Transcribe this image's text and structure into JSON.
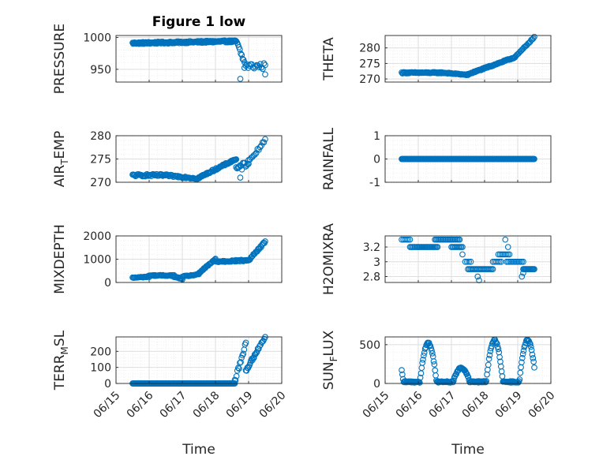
{
  "colors": {
    "marker": "#0072BD",
    "axis": "#262626",
    "grid": "#DEDEDE",
    "minor_grid": "#E6E6E6"
  },
  "chart_data": [
    {
      "id": "pressure",
      "type": "scatter",
      "title": "Figure 1 low",
      "ylabel": "PRESSURE",
      "xlabel": "",
      "xlim": [
        "06/15",
        "06/20"
      ],
      "ylim": [
        930,
        1003
      ],
      "ytick_labels": [
        "950",
        "1000"
      ],
      "ytick_values": [
        950,
        1000
      ],
      "xtick_labels": [],
      "marker": "circle",
      "grid": true,
      "minor_grid": true,
      "segments": [
        {
          "x": [
            "2023-06-15T12:00",
            "2023-06-18T15:00"
          ],
          "y": [
            991,
            994
          ],
          "n": 190,
          "wiggle": 3
        },
        {
          "x": [
            "2023-06-18T15:00",
            "2023-06-18T21:00"
          ],
          "y": [
            994,
            960
          ],
          "n": 10,
          "wiggle": 8
        },
        {
          "x": [
            "2023-06-18T21:00",
            "2023-06-19T12:00"
          ],
          "y": [
            955,
            955
          ],
          "n": 18,
          "wiggle": 10
        }
      ],
      "points": [
        {
          "x": "2023-06-18T18:00",
          "y": 935
        },
        {
          "x": "2023-06-19T12:00",
          "y": 942
        }
      ]
    },
    {
      "id": "theta",
      "type": "scatter",
      "title": "",
      "ylabel": "THETA",
      "xlabel": "",
      "xlim": [
        "06/15",
        "06/20"
      ],
      "ylim": [
        269,
        284
      ],
      "ytick_labels": [
        "270",
        "275",
        "280"
      ],
      "ytick_values": [
        270,
        275,
        280
      ],
      "xtick_labels": [],
      "marker": "circle",
      "grid": true,
      "minor_grid": true,
      "segments": [
        {
          "x": [
            "2023-06-15T12:00",
            "2023-06-16T18:00"
          ],
          "y": [
            272,
            272
          ],
          "n": 60,
          "wiggle": 0.4
        },
        {
          "x": [
            "2023-06-16T18:00",
            "2023-06-17T12:00"
          ],
          "y": [
            272,
            271.3
          ],
          "n": 40,
          "wiggle": 0.3
        },
        {
          "x": [
            "2023-06-17T12:00",
            "2023-06-18T22:00"
          ],
          "y": [
            271.5,
            277
          ],
          "n": 80,
          "wiggle": 0.4
        },
        {
          "x": [
            "2023-06-18T22:00",
            "2023-06-19T12:00"
          ],
          "y": [
            277,
            283.5
          ],
          "n": 20,
          "wiggle": 0.3
        }
      ],
      "points": []
    },
    {
      "id": "air_temp",
      "type": "scatter",
      "title": "",
      "ylabel_parts": [
        "AIR",
        "T",
        "EMP"
      ],
      "xlabel": "",
      "xlim": [
        "06/15",
        "06/20"
      ],
      "ylim": [
        270,
        280
      ],
      "ytick_labels": [
        "270",
        "275",
        "280"
      ],
      "ytick_values": [
        270,
        275,
        280
      ],
      "xtick_labels": [],
      "marker": "circle",
      "grid": true,
      "minor_grid": true,
      "segments": [
        {
          "x": [
            "2023-06-15T12:00",
            "2023-06-16T12:00"
          ],
          "y": [
            271.5,
            271.5
          ],
          "n": 45,
          "wiggle": 0.5
        },
        {
          "x": [
            "2023-06-16T12:00",
            "2023-06-17T12:00"
          ],
          "y": [
            271.5,
            270.8
          ],
          "n": 40,
          "wiggle": 0.4
        },
        {
          "x": [
            "2023-06-17T12:00",
            "2023-06-18T15:00"
          ],
          "y": [
            271,
            275
          ],
          "n": 60,
          "wiggle": 0.4
        },
        {
          "x": [
            "2023-06-18T15:00",
            "2023-06-19T00:00"
          ],
          "y": [
            272.5,
            274.5
          ],
          "n": 14,
          "wiggle": 1.5
        },
        {
          "x": [
            "2023-06-19T00:00",
            "2023-06-19T12:00"
          ],
          "y": [
            274.5,
            279
          ],
          "n": 14,
          "wiggle": 0.6
        }
      ],
      "points": [
        {
          "x": "2023-06-18T18:00",
          "y": 271
        }
      ]
    },
    {
      "id": "rainfall",
      "type": "scatter",
      "title": "",
      "ylabel": "RAINFALL",
      "xlabel": "",
      "xlim": [
        "06/15",
        "06/20"
      ],
      "ylim": [
        -1,
        1
      ],
      "ytick_labels": [
        "-1",
        "0",
        "1"
      ],
      "ytick_values": [
        -1,
        0,
        1
      ],
      "xtick_labels": [],
      "marker": "circle",
      "grid": true,
      "minor_grid": true,
      "segments": [
        {
          "x": [
            "2023-06-15T12:00",
            "2023-06-19T12:00"
          ],
          "y": [
            0,
            0
          ],
          "n": 230,
          "wiggle": 0
        }
      ],
      "points": []
    },
    {
      "id": "mixdepth",
      "type": "scatter",
      "title": "",
      "ylabel": "MIXDEPTH",
      "xlabel": "",
      "xlim": [
        "06/15",
        "06/20"
      ],
      "ylim": [
        0,
        2000
      ],
      "ytick_labels": [
        "0",
        "1000",
        "2000"
      ],
      "ytick_values": [
        0,
        1000,
        2000
      ],
      "xtick_labels": [],
      "marker": "circle",
      "grid": true,
      "minor_grid": true,
      "segments": [
        {
          "x": [
            "2023-06-15T12:00",
            "2023-06-16T00:00"
          ],
          "y": [
            200,
            250
          ],
          "n": 20,
          "wiggle": 40
        },
        {
          "x": [
            "2023-06-16T00:00",
            "2023-06-16T18:00"
          ],
          "y": [
            300,
            300
          ],
          "n": 30,
          "wiggle": 40
        },
        {
          "x": [
            "2023-06-16T18:00",
            "2023-06-17T00:00"
          ],
          "y": [
            250,
            150
          ],
          "n": 12,
          "wiggle": 40
        },
        {
          "x": [
            "2023-06-17T00:00",
            "2023-06-17T12:00"
          ],
          "y": [
            250,
            350
          ],
          "n": 20,
          "wiggle": 40
        },
        {
          "x": [
            "2023-06-17T12:00",
            "2023-06-18T00:00"
          ],
          "y": [
            400,
            1000
          ],
          "n": 24,
          "wiggle": 60
        },
        {
          "x": [
            "2023-06-18T00:00",
            "2023-06-19T00:00"
          ],
          "y": [
            900,
            950
          ],
          "n": 45,
          "wiggle": 70
        },
        {
          "x": [
            "2023-06-19T00:00",
            "2023-06-19T12:00"
          ],
          "y": [
            950,
            1750
          ],
          "n": 22,
          "wiggle": 80
        }
      ],
      "points": []
    },
    {
      "id": "h2omixra",
      "type": "scatter",
      "title": "",
      "ylabel": "H2OMIXRA",
      "xlabel": "",
      "xlim": [
        "06/15",
        "06/20"
      ],
      "ylim": [
        2.72,
        3.35
      ],
      "ytick_labels": [
        "2.8",
        "3",
        "3.2"
      ],
      "ytick_values": [
        2.8,
        3.0,
        3.2
      ],
      "xtick_labels": [],
      "marker": "circle",
      "grid": true,
      "minor_grid": true,
      "steps": [
        {
          "x": [
            "2023-06-15T12:00",
            "2023-06-15T18:00"
          ],
          "y": 3.3,
          "n": 6
        },
        {
          "x": [
            "2023-06-15T18:00",
            "2023-06-16T00:00"
          ],
          "y": 3.2,
          "n": 8
        },
        {
          "x": [
            "2023-06-16T00:00",
            "2023-06-16T14:00"
          ],
          "y": 3.2,
          "n": 18
        },
        {
          "x": [
            "2023-06-16T12:00",
            "2023-06-17T06:00"
          ],
          "y": 3.3,
          "n": 22
        },
        {
          "x": [
            "2023-06-17T00:00",
            "2023-06-17T08:00"
          ],
          "y": 3.2,
          "n": 10
        },
        {
          "x": [
            "2023-06-17T10:00",
            "2023-06-17T14:00"
          ],
          "y": 3.0,
          "n": 4
        },
        {
          "x": [
            "2023-06-17T12:00",
            "2023-06-18T06:00"
          ],
          "y": 2.9,
          "n": 20
        },
        {
          "x": [
            "2023-06-18T06:00",
            "2023-06-18T12:00"
          ],
          "y": 3.0,
          "n": 6
        },
        {
          "x": [
            "2023-06-18T10:00",
            "2023-06-18T18:00"
          ],
          "y": 3.1,
          "n": 8
        },
        {
          "x": [
            "2023-06-18T16:00",
            "2023-06-19T04:00"
          ],
          "y": 3.0,
          "n": 12
        },
        {
          "x": [
            "2023-06-19T04:00",
            "2023-06-19T12:00"
          ],
          "y": 2.9,
          "n": 14
        }
      ],
      "points": [
        {
          "x": "2023-06-17T08:00",
          "y": 3.1
        },
        {
          "x": "2023-06-17T19:00",
          "y": 2.8
        },
        {
          "x": "2023-06-17T20:00",
          "y": 2.75
        },
        {
          "x": "2023-06-18T15:00",
          "y": 3.3
        },
        {
          "x": "2023-06-18T17:00",
          "y": 3.2
        },
        {
          "x": "2023-06-19T03:00",
          "y": 2.8
        },
        {
          "x": "2023-06-19T04:00",
          "y": 2.85
        }
      ]
    },
    {
      "id": "terr_msl",
      "type": "scatter",
      "title": "",
      "ylabel_parts": [
        "TERR",
        "M",
        "SL"
      ],
      "xlabel": "Time",
      "xlim": [
        "06/15",
        "06/20"
      ],
      "ylim": [
        0,
        290
      ],
      "ytick_labels": [
        "0",
        "100",
        "200"
      ],
      "ytick_values": [
        0,
        100,
        200
      ],
      "xtick_labels": [
        "06/15",
        "06/16",
        "06/17",
        "06/18",
        "06/19",
        "06/20"
      ],
      "marker": "circle",
      "grid": true,
      "minor_grid": true,
      "segments": [
        {
          "x": [
            "2023-06-15T12:00",
            "2023-06-18T14:00"
          ],
          "y": [
            0,
            0
          ],
          "n": 170,
          "wiggle": 0
        },
        {
          "x": [
            "2023-06-18T14:00",
            "2023-06-18T22:00"
          ],
          "y": [
            10,
            250
          ],
          "n": 14,
          "wiggle": 30
        },
        {
          "x": [
            "2023-06-18T22:00",
            "2023-06-19T06:00"
          ],
          "y": [
            80,
            200
          ],
          "n": 16,
          "wiggle": 20
        },
        {
          "x": [
            "2023-06-19T06:00",
            "2023-06-19T12:00"
          ],
          "y": [
            200,
            290
          ],
          "n": 10,
          "wiggle": 20
        }
      ],
      "points": []
    },
    {
      "id": "sun_flux",
      "type": "scatter",
      "title": "",
      "ylabel_parts": [
        "SUN",
        "F",
        "LUX"
      ],
      "xlabel": "Time",
      "xlim": [
        "06/15",
        "06/20"
      ],
      "ylim": [
        0,
        600
      ],
      "ytick_labels": [
        "0",
        "500"
      ],
      "ytick_values": [
        0,
        500
      ],
      "xtick_labels": [
        "06/15",
        "06/16",
        "06/17",
        "06/18",
        "06/19",
        "06/20"
      ],
      "marker": "circle",
      "grid": true,
      "minor_grid": true,
      "curve": {
        "x": [
          "2023-06-15T12:00",
          "2023-06-19T12:00"
        ],
        "n": 200
      },
      "points": []
    }
  ]
}
